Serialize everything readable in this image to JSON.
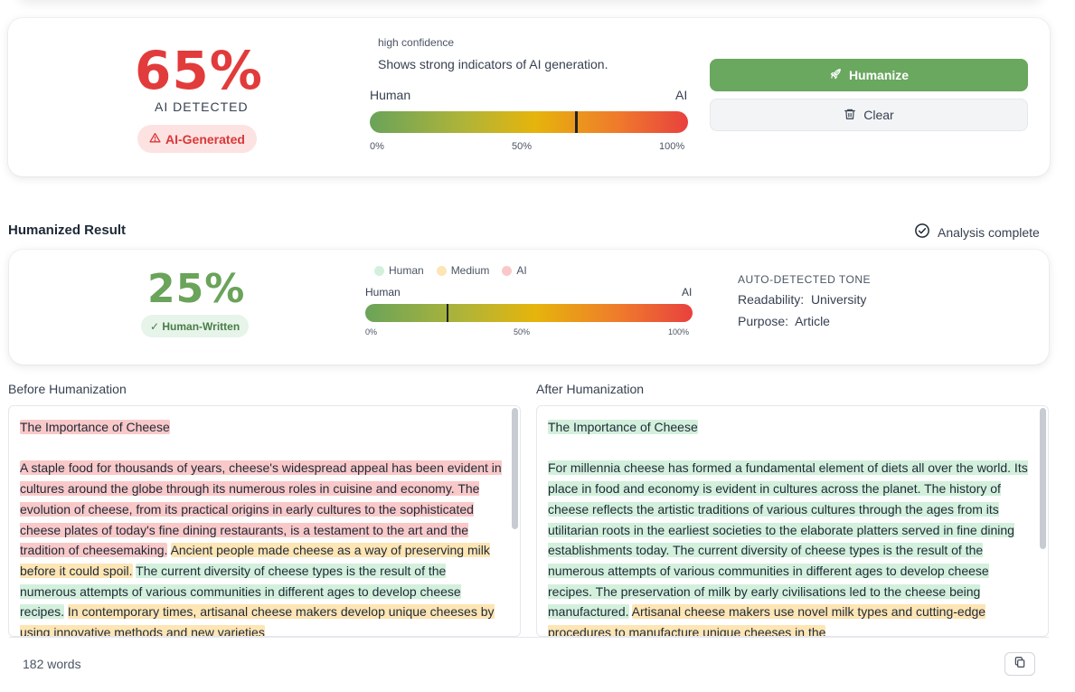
{
  "detection": {
    "percentage": "65%",
    "label": "AI DETECTED",
    "badge": "AI-Generated",
    "confidence_label": "high confidence",
    "description": "Shows strong indicators of AI generation.",
    "scale_left": "Human",
    "scale_right": "AI",
    "ticks": [
      "0%",
      "50%",
      "100%"
    ],
    "marker_fraction": 0.65
  },
  "actions": {
    "humanize_label": "Humanize",
    "clear_label": "Clear"
  },
  "result": {
    "section_title": "Humanized Result",
    "status": "Analysis complete",
    "percentage": "25%",
    "badge": "✓ Human-Written",
    "legend": [
      {
        "label": "Human",
        "color": "#d3f0dc"
      },
      {
        "label": "Medium",
        "color": "#fde5b4"
      },
      {
        "label": "AI",
        "color": "#f9c9c9"
      }
    ],
    "scale_left": "Human",
    "scale_right": "AI",
    "ticks": [
      "0%",
      "50%",
      "100%"
    ],
    "marker_fraction": 0.25,
    "tone": {
      "title": "AUTO-DETECTED TONE",
      "readability_key": "Readability:",
      "readability_value": "University",
      "purpose_key": "Purpose:",
      "purpose_value": "Article"
    }
  },
  "before": {
    "label": "Before Humanization",
    "title": "The Importance of Cheese",
    "title_level": "ai",
    "segments": [
      {
        "text": "A staple food for thousands of years, cheese's widespread appeal has been evident in cultures around the globe through its numerous roles in cuisine and economy. The evolution of cheese, from its practical origins in early cultures to the sophisticated cheese plates of today's fine dining restaurants, is a testament to the art and the tradition of cheesemaking.",
        "level": "ai"
      },
      {
        "text": "Ancient people made cheese as a way of preserving milk before it could spoil.",
        "level": "med"
      },
      {
        "text": "The current diversity of cheese types is the result of the numerous attempts of various communities in different ages to develop cheese recipes.",
        "level": "hum"
      },
      {
        "text": "In contemporary times, artisanal cheese makers develop unique cheeses by using innovative methods and new varieties",
        "level": "med"
      }
    ]
  },
  "after": {
    "label": "After Humanization",
    "title": "The Importance of Cheese",
    "title_level": "hum",
    "segments": [
      {
        "text": "For millennia cheese has formed a fundamental element of diets all over the world. Its place in food and economy is evident in cultures across the planet. The history of cheese reflects the artistic traditions of various cultures through the ages from its utilitarian roots in the earliest societies to the elaborate platters served in fine dining establishments today. The current diversity of cheese types is the result of the numerous attempts of various communities in different ages to develop cheese recipes. The preservation of milk by early civilisations led to the cheese being manufactured.",
        "level": "hum"
      },
      {
        "text": "Artisanal cheese makers use novel milk types and cutting-edge procedures to manufacture unique cheeses in the",
        "level": "med"
      }
    ]
  },
  "footer": {
    "word_count": "182 words"
  }
}
